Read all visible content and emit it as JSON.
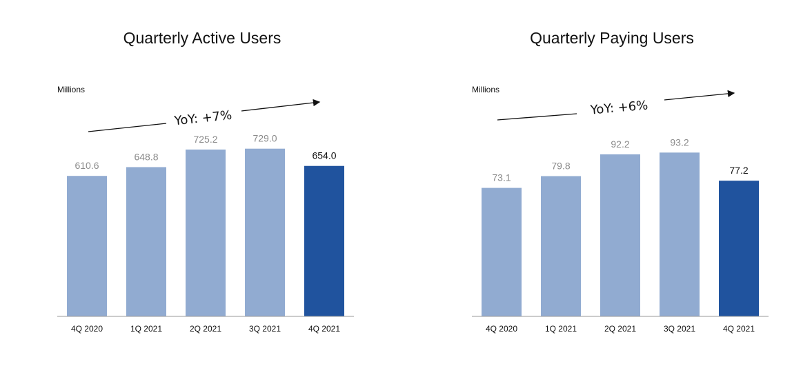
{
  "chart_data": [
    {
      "type": "bar",
      "title": "Quarterly Active Users",
      "ylabel": "Millions",
      "categories": [
        "4Q 2020",
        "1Q 2021",
        "2Q 2021",
        "3Q 2021",
        "4Q 2021"
      ],
      "values": [
        610.6,
        648.8,
        725.2,
        729.0,
        654.0
      ],
      "value_labels": [
        "610.6",
        "648.8",
        "725.2",
        "729.0",
        "654.0"
      ],
      "annotation": "YoY: +7%",
      "ylim": [
        0,
        800
      ],
      "grid": false,
      "colors": {
        "past": "#91abd1",
        "current": "#20539e",
        "past_label": "#8a8a8a",
        "current_label": "#111111"
      }
    },
    {
      "type": "bar",
      "title": "Quarterly Paying Users",
      "ylabel": "Millions",
      "categories": [
        "4Q 2020",
        "1Q 2021",
        "2Q 2021",
        "3Q 2021",
        "4Q 2021"
      ],
      "values": [
        73.1,
        79.8,
        92.2,
        93.2,
        77.2
      ],
      "value_labels": [
        "73.1",
        "79.8",
        "92.2",
        "93.2",
        "77.2"
      ],
      "annotation": "YoY: +6%",
      "ylim": [
        0,
        100
      ],
      "grid": false,
      "colors": {
        "past": "#91abd1",
        "current": "#20539e",
        "past_label": "#8a8a8a",
        "current_label": "#111111"
      }
    }
  ]
}
